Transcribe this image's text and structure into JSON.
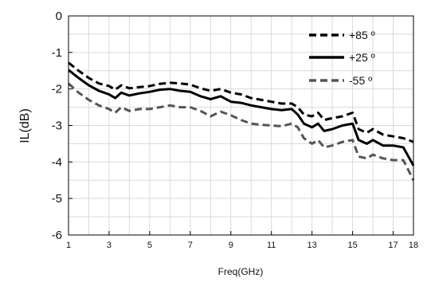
{
  "chart_data": {
    "type": "line",
    "title": "",
    "xlabel": "Freq(GHz)",
    "ylabel": "IL(dB)",
    "xlim": [
      1,
      18
    ],
    "ylim": [
      -6,
      0
    ],
    "x_ticks": [
      1,
      3,
      5,
      7,
      9,
      11,
      13,
      15,
      17,
      18
    ],
    "y_ticks": [
      0,
      -1,
      -2,
      -3,
      -4,
      -5,
      -6
    ],
    "x_tick_labels": [
      "1",
      "3",
      "5",
      "7",
      "9",
      "11",
      "13",
      "15",
      "17",
      "18"
    ],
    "y_tick_labels": [
      "0",
      "-1",
      "-2",
      "-3",
      "-4",
      "-5",
      "-6"
    ],
    "grid": true,
    "legend_position": "top-right",
    "series": [
      {
        "name": "+85 º",
        "style": "dashed",
        "color": "#000000",
        "x": [
          1,
          1.5,
          2,
          2.5,
          3,
          3.3,
          3.6,
          4,
          4.5,
          5,
          5.5,
          6,
          6.5,
          7,
          7.5,
          8,
          8.5,
          9,
          9.5,
          10,
          10.5,
          11,
          11.5,
          12,
          12.3,
          12.6,
          13,
          13.3,
          13.6,
          14,
          14.5,
          15,
          15.3,
          15.7,
          16,
          16.5,
          17,
          17.5,
          18
        ],
        "y": [
          -1.28,
          -1.5,
          -1.7,
          -1.85,
          -1.92,
          -2.02,
          -1.9,
          -1.98,
          -1.95,
          -1.92,
          -1.86,
          -1.83,
          -1.85,
          -1.88,
          -1.98,
          -2.05,
          -2.0,
          -2.1,
          -2.15,
          -2.25,
          -2.3,
          -2.35,
          -2.4,
          -2.4,
          -2.5,
          -2.7,
          -2.75,
          -2.65,
          -2.85,
          -2.8,
          -2.75,
          -2.65,
          -3.1,
          -3.2,
          -3.1,
          -3.25,
          -3.3,
          -3.35,
          -3.45
        ]
      },
      {
        "name": "+25 º",
        "style": "solid",
        "color": "#000000",
        "x": [
          1,
          1.5,
          2,
          2.5,
          3,
          3.3,
          3.6,
          4,
          4.5,
          5,
          5.5,
          6,
          6.5,
          7,
          7.5,
          8,
          8.5,
          9,
          9.5,
          10,
          10.5,
          11,
          11.5,
          12,
          12.3,
          12.6,
          13,
          13.3,
          13.6,
          14,
          14.5,
          15,
          15.3,
          15.7,
          16,
          16.5,
          17,
          17.5,
          18
        ],
        "y": [
          -1.48,
          -1.7,
          -1.9,
          -2.05,
          -2.15,
          -2.25,
          -2.1,
          -2.18,
          -2.12,
          -2.08,
          -2.02,
          -2.0,
          -2.05,
          -2.08,
          -2.2,
          -2.28,
          -2.2,
          -2.35,
          -2.38,
          -2.45,
          -2.5,
          -2.55,
          -2.58,
          -2.55,
          -2.7,
          -2.95,
          -3.05,
          -2.95,
          -3.15,
          -3.1,
          -3.0,
          -2.95,
          -3.4,
          -3.5,
          -3.4,
          -3.55,
          -3.55,
          -3.6,
          -4.1
        ]
      },
      {
        "name": "-55 º",
        "style": "dashed",
        "color": "#555555",
        "x": [
          1,
          1.5,
          2,
          2.5,
          3,
          3.3,
          3.6,
          4,
          4.5,
          5,
          5.5,
          6,
          6.5,
          7,
          7.5,
          8,
          8.5,
          9,
          9.5,
          10,
          10.5,
          11,
          11.5,
          12,
          12.3,
          12.6,
          13,
          13.3,
          13.6,
          14,
          14.5,
          15,
          15.3,
          15.7,
          16,
          16.5,
          17,
          17.5,
          18
        ],
        "y": [
          -1.85,
          -2.1,
          -2.3,
          -2.45,
          -2.55,
          -2.65,
          -2.5,
          -2.6,
          -2.55,
          -2.55,
          -2.5,
          -2.45,
          -2.5,
          -2.5,
          -2.6,
          -2.75,
          -2.62,
          -2.72,
          -2.85,
          -2.95,
          -2.98,
          -3.0,
          -3.02,
          -2.95,
          -3.05,
          -3.35,
          -3.5,
          -3.4,
          -3.6,
          -3.55,
          -3.45,
          -3.4,
          -3.85,
          -3.9,
          -3.8,
          -3.9,
          -3.95,
          -3.95,
          -4.5
        ]
      }
    ]
  }
}
